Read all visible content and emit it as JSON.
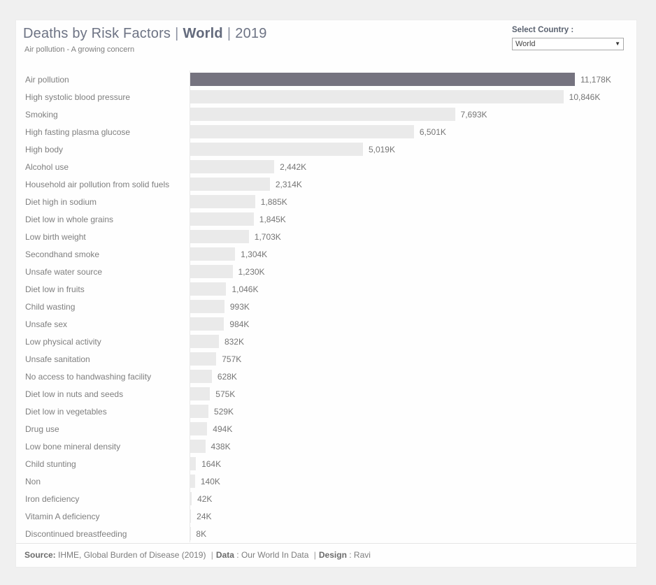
{
  "header": {
    "title_prefix": "Deaths by Risk Factors",
    "title_country": "World",
    "title_year": "2019",
    "separator": "|",
    "subtitle": "Air pollution - A growing concern"
  },
  "country_selector": {
    "label": "Select Country :",
    "value": "World",
    "caret_icon": "▼"
  },
  "chart_data": {
    "type": "bar",
    "orientation": "horizontal",
    "title": "Deaths by Risk Factors | World | 2019",
    "unit": "K (thousands of deaths)",
    "max_value": 11178,
    "highlighted_category": "Air pollution",
    "highlight_color": "#75737f",
    "bar_color": "#eaeaea",
    "categories": [
      "Air pollution",
      "High systolic blood pressure",
      "Smoking",
      "High fasting plasma glucose",
      "High body",
      "Alcohol use",
      "Household air pollution from solid fuels",
      "Diet high in sodium",
      "Diet low in whole grains",
      "Low birth weight",
      "Secondhand smoke",
      "Unsafe water source",
      "Diet low in fruits",
      "Child wasting",
      "Unsafe sex",
      "Low physical activity",
      "Unsafe sanitation",
      "No access to handwashing facility",
      "Diet low in nuts and seeds",
      "Diet low in vegetables",
      "Drug use",
      "Low bone mineral density",
      "Child stunting",
      "Non",
      "Iron deficiency",
      "Vitamin A deficiency",
      "Discontinued breastfeeding"
    ],
    "values": [
      11178,
      10846,
      7693,
      6501,
      5019,
      2442,
      2314,
      1885,
      1845,
      1703,
      1304,
      1230,
      1046,
      993,
      984,
      832,
      757,
      628,
      575,
      529,
      494,
      438,
      164,
      140,
      42,
      24,
      8
    ],
    "value_labels": [
      "11,178K",
      "10,846K",
      "7,693K",
      "6,501K",
      "5,019K",
      "2,442K",
      "2,314K",
      "1,885K",
      "1,845K",
      "1,703K",
      "1,304K",
      "1,230K",
      "1,046K",
      "993K",
      "984K",
      "832K",
      "757K",
      "628K",
      "575K",
      "529K",
      "494K",
      "438K",
      "164K",
      "140K",
      "42K",
      "24K",
      "8K"
    ]
  },
  "footer": {
    "source_label": "Source:",
    "source_text": " IHME, Global Burden of Disease (2019) ",
    "separator": "|",
    "data_label": "Data",
    "data_text": " : Our World In Data ",
    "design_label": "Design",
    "design_text": " : Ravi"
  }
}
